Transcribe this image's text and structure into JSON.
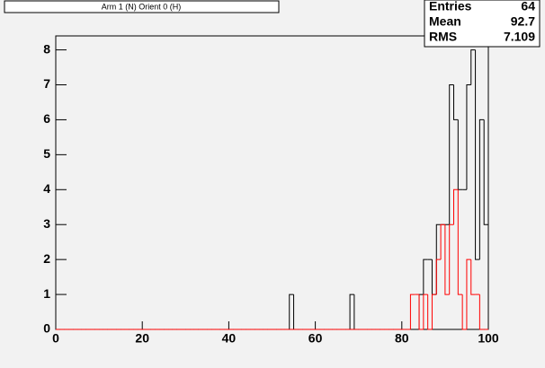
{
  "chart_data": {
    "type": "histogram",
    "title": "Arm 1 (N) Orient 0 (H)",
    "bins": [
      0,
      1,
      2,
      3,
      4,
      5,
      6,
      7,
      8,
      9,
      10,
      11,
      12,
      13,
      14,
      15,
      16,
      17,
      18,
      19,
      20,
      21,
      22,
      23,
      24,
      25,
      26,
      27,
      28,
      29,
      30,
      31,
      32,
      33,
      34,
      35,
      36,
      37,
      38,
      39,
      40,
      41,
      42,
      43,
      44,
      45,
      46,
      47,
      48,
      49,
      50,
      51,
      52,
      53,
      54,
      55,
      56,
      57,
      58,
      59,
      60,
      61,
      62,
      63,
      64,
      65,
      66,
      67,
      68,
      69,
      70,
      71,
      72,
      73,
      74,
      75,
      76,
      77,
      78,
      79,
      80,
      81,
      82,
      83,
      84,
      85,
      86,
      87,
      88,
      89,
      90,
      91,
      92,
      93,
      94,
      95,
      96,
      97,
      98,
      99,
      100
    ],
    "series": [
      {
        "color": "#000000",
        "values": [
          0,
          0,
          0,
          0,
          0,
          0,
          0,
          0,
          0,
          0,
          0,
          0,
          0,
          0,
          0,
          0,
          0,
          0,
          0,
          0,
          0,
          0,
          0,
          0,
          0,
          0,
          0,
          0,
          0,
          0,
          0,
          0,
          0,
          0,
          0,
          0,
          0,
          0,
          0,
          0,
          0,
          0,
          0,
          0,
          0,
          0,
          0,
          0,
          0,
          0,
          0,
          0,
          0,
          0,
          1,
          0,
          0,
          0,
          0,
          0,
          0,
          0,
          0,
          0,
          0,
          0,
          0,
          0,
          1,
          0,
          0,
          0,
          0,
          0,
          0,
          0,
          0,
          0,
          0,
          0,
          0,
          0,
          0,
          0,
          1,
          2,
          2,
          1,
          3,
          3,
          3,
          7,
          6,
          4,
          4,
          7,
          8,
          2,
          6,
          3
        ]
      },
      {
        "color": "#ff0000",
        "values": [
          0,
          0,
          0,
          0,
          0,
          0,
          0,
          0,
          0,
          0,
          0,
          0,
          0,
          0,
          0,
          0,
          0,
          0,
          0,
          0,
          0,
          0,
          0,
          0,
          0,
          0,
          0,
          0,
          0,
          0,
          0,
          0,
          0,
          0,
          0,
          0,
          0,
          0,
          0,
          0,
          0,
          0,
          0,
          0,
          0,
          0,
          0,
          0,
          0,
          0,
          0,
          0,
          0,
          0,
          0,
          0,
          0,
          0,
          0,
          0,
          0,
          0,
          0,
          0,
          0,
          0,
          0,
          0,
          0,
          0,
          0,
          0,
          0,
          0,
          0,
          0,
          0,
          0,
          0,
          0,
          0,
          0,
          1,
          1,
          0,
          1,
          0,
          1,
          2,
          3,
          1,
          3,
          4,
          1,
          0,
          2,
          1,
          1,
          0,
          0
        ]
      }
    ],
    "xlim": [
      0,
      100
    ],
    "ylim": [
      0,
      8.4
    ],
    "xticks": [
      0,
      20,
      40,
      60,
      80,
      100
    ],
    "yticks": [
      0,
      1,
      2,
      3,
      4,
      5,
      6,
      7,
      8
    ],
    "stats": [
      {
        "label": "Entries",
        "value": "64"
      },
      {
        "label": "Mean",
        "value": "92.7"
      },
      {
        "label": "RMS",
        "value": "7.109"
      }
    ]
  }
}
